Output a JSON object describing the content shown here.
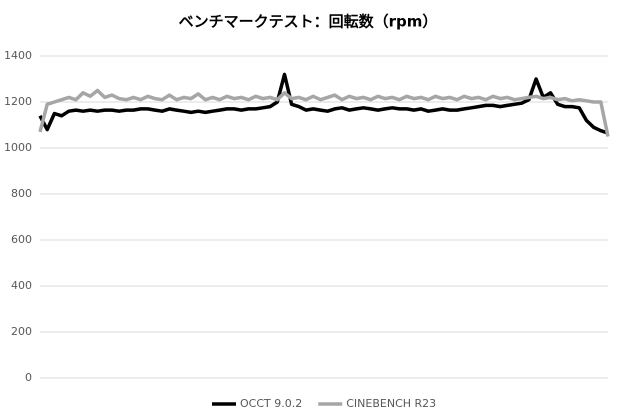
{
  "chart_data": {
    "type": "line",
    "title": "ベンチマークテスト：回転数（rpm）",
    "ylim": [
      0,
      1400
    ],
    "yticks": [
      0,
      200,
      400,
      600,
      800,
      1000,
      1200,
      1400
    ],
    "grid": true,
    "legend": "bottom",
    "series": [
      {
        "name": "OCCT 9.0.2",
        "color": "#000000",
        "width": 3.5,
        "values": [
          1140,
          1080,
          1150,
          1140,
          1160,
          1165,
          1160,
          1165,
          1160,
          1165,
          1165,
          1160,
          1165,
          1165,
          1170,
          1170,
          1165,
          1160,
          1170,
          1165,
          1160,
          1155,
          1160,
          1155,
          1160,
          1165,
          1170,
          1170,
          1165,
          1170,
          1170,
          1175,
          1180,
          1200,
          1320,
          1190,
          1180,
          1165,
          1170,
          1165,
          1160,
          1170,
          1175,
          1165,
          1170,
          1175,
          1170,
          1165,
          1170,
          1175,
          1170,
          1170,
          1165,
          1170,
          1160,
          1165,
          1170,
          1165,
          1165,
          1170,
          1175,
          1180,
          1185,
          1185,
          1180,
          1185,
          1190,
          1195,
          1210,
          1300,
          1220,
          1240,
          1190,
          1180,
          1180,
          1175,
          1120,
          1090,
          1075,
          1065
        ]
      },
      {
        "name": "CINEBENCH R23",
        "color": "#a6a6a6",
        "width": 3.5,
        "values": [
          1070,
          1190,
          1200,
          1210,
          1220,
          1210,
          1240,
          1225,
          1250,
          1220,
          1230,
          1215,
          1210,
          1220,
          1210,
          1225,
          1215,
          1210,
          1230,
          1210,
          1220,
          1215,
          1235,
          1210,
          1220,
          1210,
          1225,
          1215,
          1220,
          1210,
          1225,
          1215,
          1220,
          1210,
          1240,
          1215,
          1220,
          1210,
          1225,
          1210,
          1220,
          1230,
          1210,
          1225,
          1215,
          1220,
          1210,
          1225,
          1215,
          1220,
          1210,
          1225,
          1215,
          1220,
          1210,
          1225,
          1215,
          1220,
          1210,
          1225,
          1215,
          1220,
          1210,
          1225,
          1215,
          1220,
          1210,
          1215,
          1220,
          1225,
          1215,
          1220,
          1210,
          1215,
          1205,
          1210,
          1205,
          1200,
          1200,
          1050
        ]
      }
    ]
  }
}
